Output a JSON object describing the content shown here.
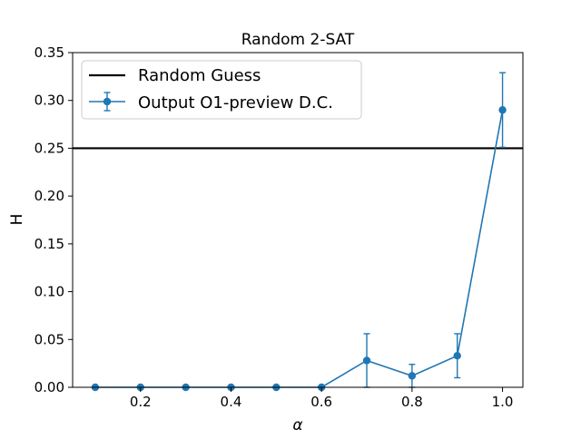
{
  "chart_data": {
    "type": "line",
    "title": "Random 2-SAT",
    "xlabel": "α",
    "ylabel": "H",
    "xlim": [
      0.05,
      1.045
    ],
    "ylim": [
      0,
      0.35
    ],
    "xticks": [
      "0.2",
      "0.4",
      "0.6",
      "0.8",
      "1.0"
    ],
    "xtick_values": [
      0.2,
      0.4,
      0.6,
      0.8,
      1.0
    ],
    "yticks": [
      "0.00",
      "0.05",
      "0.10",
      "0.15",
      "0.20",
      "0.25",
      "0.30",
      "0.35"
    ],
    "ytick_values": [
      0.0,
      0.05,
      0.1,
      0.15,
      0.2,
      0.25,
      0.3,
      0.35
    ],
    "grid": false,
    "legend_position": "top-left",
    "reference_line": {
      "name": "Random Guess",
      "y": 0.25,
      "color": "#000000"
    },
    "series": [
      {
        "name": "Output O1-preview  D.C.",
        "color": "#1f77b4",
        "x": [
          0.1,
          0.2,
          0.3,
          0.4,
          0.5,
          0.6,
          0.7,
          0.8,
          0.9,
          1.0
        ],
        "y": [
          0.0,
          0.0,
          0.0,
          0.0,
          0.0,
          0.0,
          0.028,
          0.012,
          0.033,
          0.29
        ],
        "yerr": [
          0.0,
          0.0,
          0.0,
          0.0,
          0.0,
          0.0,
          0.028,
          0.012,
          0.023,
          0.039
        ]
      }
    ]
  }
}
